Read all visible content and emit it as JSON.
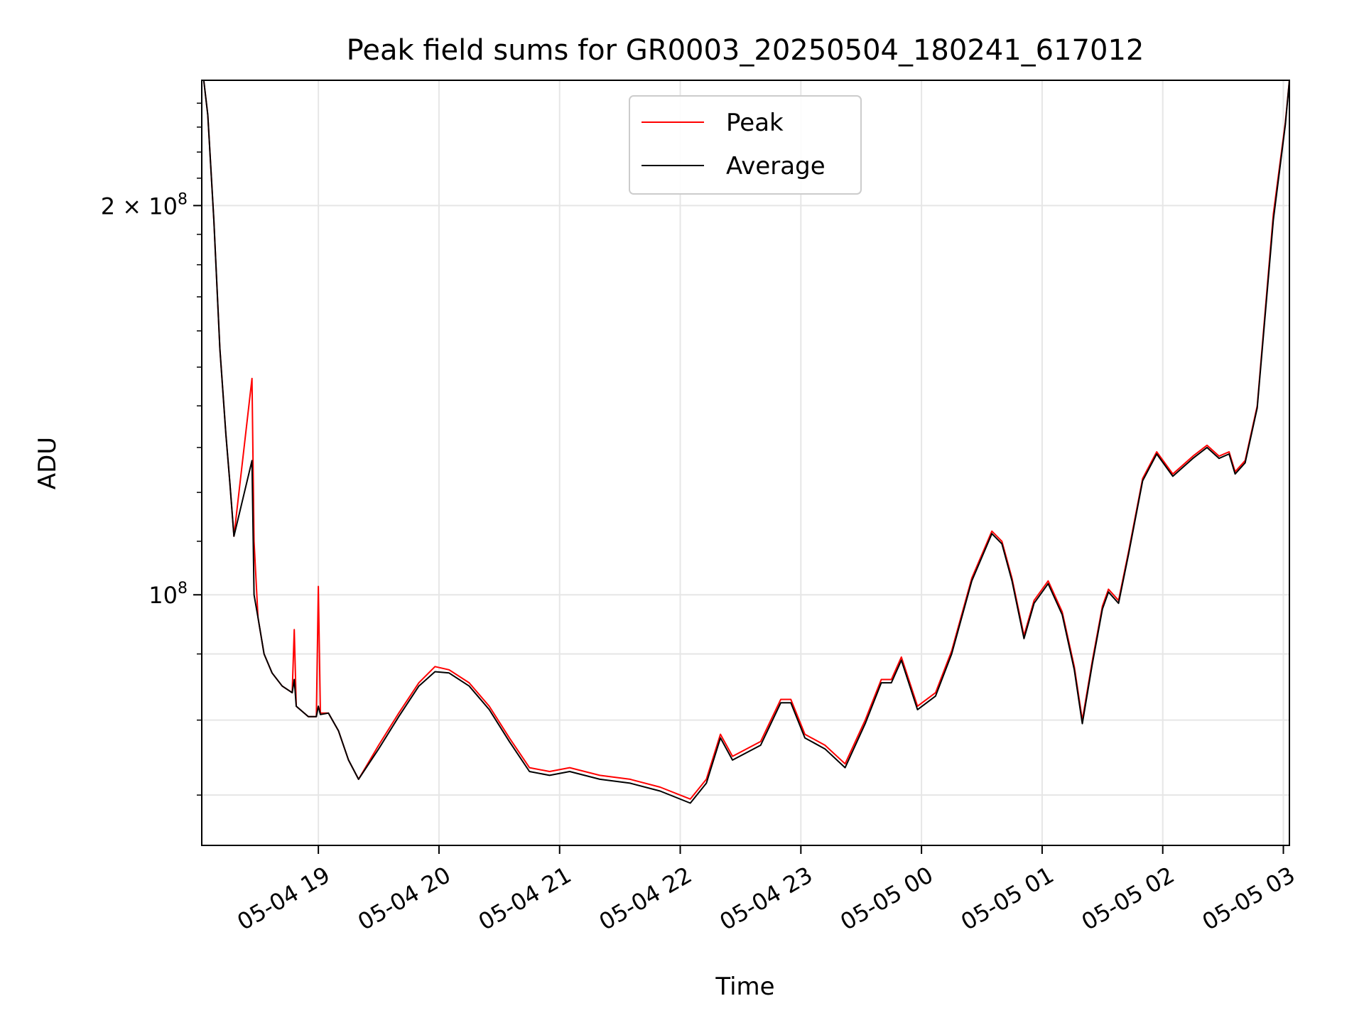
{
  "chart_data": {
    "type": "line",
    "title": "Peak field sums for GR0003_20250504_180241_617012",
    "xlabel": "Time",
    "ylabel": "ADU",
    "yscale": "log",
    "grid": true,
    "legend_position": "upper center",
    "xlim": [
      "05-04 18:02",
      "05-05 03:03"
    ],
    "ylim": [
      64000000,
      250000000
    ],
    "x_ticks": [
      "05-04 19",
      "05-04 20",
      "05-04 21",
      "05-04 22",
      "05-04 23",
      "05-05 00",
      "05-05 01",
      "05-05 02",
      "05-05 03"
    ],
    "y_ticks": [
      {
        "value": 100000000,
        "label": "10^8"
      },
      {
        "value": 200000000,
        "label": "2 × 10^8"
      }
    ],
    "series": [
      {
        "name": "Peak",
        "color": "#ff0000",
        "points": [
          [
            "05-04 18:03",
            250000000
          ],
          [
            "05-04 18:05",
            235000000
          ],
          [
            "05-04 18:08",
            195000000
          ],
          [
            "05-04 18:11",
            155000000
          ],
          [
            "05-04 18:14",
            133000000
          ],
          [
            "05-04 18:16",
            122000000
          ],
          [
            "05-04 18:18",
            111000000
          ],
          [
            "05-04 18:27",
            147000000
          ],
          [
            "05-04 18:28",
            110000000
          ],
          [
            "05-04 18:30",
            96000000
          ],
          [
            "05-04 18:33",
            90000000
          ],
          [
            "05-04 18:37",
            87000000
          ],
          [
            "05-04 18:42",
            85000000
          ],
          [
            "05-04 18:47",
            84000000
          ],
          [
            "05-04 18:48",
            94000000
          ],
          [
            "05-04 18:49",
            82000000
          ],
          [
            "05-04 18:55",
            80500000
          ],
          [
            "05-04 18:59",
            80500000
          ],
          [
            "05-04 19:00",
            101500000
          ],
          [
            "05-04 19:01",
            81000000
          ],
          [
            "05-04 19:05",
            81000000
          ],
          [
            "05-04 19:10",
            78500000
          ],
          [
            "05-04 19:15",
            74500000
          ],
          [
            "05-04 19:20",
            72000000
          ],
          [
            "05-04 19:30",
            76500000
          ],
          [
            "05-04 19:40",
            81000000
          ],
          [
            "05-04 19:50",
            85500000
          ],
          [
            "05-04 19:58",
            88000000
          ],
          [
            "05-04 20:05",
            87500000
          ],
          [
            "05-04 20:15",
            85500000
          ],
          [
            "05-04 20:25",
            82000000
          ],
          [
            "05-04 20:35",
            77500000
          ],
          [
            "05-04 20:45",
            73500000
          ],
          [
            "05-04 20:55",
            73000000
          ],
          [
            "05-04 21:05",
            73500000
          ],
          [
            "05-04 21:20",
            72500000
          ],
          [
            "05-04 21:35",
            72000000
          ],
          [
            "05-04 21:50",
            71000000
          ],
          [
            "05-04 22:05",
            69500000
          ],
          [
            "05-04 22:13",
            72000000
          ],
          [
            "05-04 22:20",
            78000000
          ],
          [
            "05-04 22:26",
            75000000
          ],
          [
            "05-04 22:40",
            77000000
          ],
          [
            "05-04 22:50",
            83000000
          ],
          [
            "05-04 22:55",
            83000000
          ],
          [
            "05-04 23:02",
            78000000
          ],
          [
            "05-04 23:12",
            76500000
          ],
          [
            "05-04 23:22",
            74000000
          ],
          [
            "05-04 23:32",
            80000000
          ],
          [
            "05-04 23:40",
            86000000
          ],
          [
            "05-04 23:45",
            86000000
          ],
          [
            "05-04 23:50",
            89500000
          ],
          [
            "05-04 23:58",
            82000000
          ],
          [
            "05-05 00:07",
            84000000
          ],
          [
            "05-05 00:15",
            90500000
          ],
          [
            "05-05 00:25",
            103000000
          ],
          [
            "05-05 00:35",
            112000000
          ],
          [
            "05-05 00:40",
            110000000
          ],
          [
            "05-05 00:45",
            103000000
          ],
          [
            "05-05 00:51",
            93000000
          ],
          [
            "05-05 00:56",
            99000000
          ],
          [
            "05-05 01:03",
            102500000
          ],
          [
            "05-05 01:10",
            97000000
          ],
          [
            "05-05 01:16",
            88000000
          ],
          [
            "05-05 01:20",
            80000000
          ],
          [
            "05-05 01:25",
            89000000
          ],
          [
            "05-05 01:30",
            98000000
          ],
          [
            "05-05 01:33",
            101000000
          ],
          [
            "05-05 01:38",
            99000000
          ],
          [
            "05-05 01:43",
            108000000
          ],
          [
            "05-05 01:50",
            123000000
          ],
          [
            "05-05 01:57",
            129000000
          ],
          [
            "05-05 02:05",
            124000000
          ],
          [
            "05-05 02:15",
            128000000
          ],
          [
            "05-05 02:22",
            130500000
          ],
          [
            "05-05 02:28",
            128000000
          ],
          [
            "05-05 02:33",
            129000000
          ],
          [
            "05-05 02:36",
            124500000
          ],
          [
            "05-05 02:41",
            127000000
          ],
          [
            "05-05 02:47",
            140000000
          ],
          [
            "05-05 02:55",
            197000000
          ],
          [
            "05-05 03:01",
            232000000
          ],
          [
            "05-05 03:03",
            250000000
          ]
        ]
      },
      {
        "name": "Average",
        "color": "#000000",
        "points": [
          [
            "05-04 18:03",
            250000000
          ],
          [
            "05-04 18:05",
            235000000
          ],
          [
            "05-04 18:08",
            195000000
          ],
          [
            "05-04 18:11",
            155000000
          ],
          [
            "05-04 18:14",
            133000000
          ],
          [
            "05-04 18:16",
            122000000
          ],
          [
            "05-04 18:18",
            111000000
          ],
          [
            "05-04 18:27",
            127000000
          ],
          [
            "05-04 18:28",
            100000000
          ],
          [
            "05-04 18:30",
            96000000
          ],
          [
            "05-04 18:33",
            90000000
          ],
          [
            "05-04 18:37",
            87000000
          ],
          [
            "05-04 18:42",
            85000000
          ],
          [
            "05-04 18:47",
            84000000
          ],
          [
            "05-04 18:48",
            86000000
          ],
          [
            "05-04 18:49",
            82000000
          ],
          [
            "05-04 18:55",
            80500000
          ],
          [
            "05-04 18:59",
            80500000
          ],
          [
            "05-04 19:00",
            82000000
          ],
          [
            "05-04 19:01",
            80800000
          ],
          [
            "05-04 19:05",
            81000000
          ],
          [
            "05-04 19:10",
            78500000
          ],
          [
            "05-04 19:15",
            74500000
          ],
          [
            "05-04 19:20",
            72000000
          ],
          [
            "05-04 19:30",
            76000000
          ],
          [
            "05-04 19:40",
            80500000
          ],
          [
            "05-04 19:50",
            85000000
          ],
          [
            "05-04 19:58",
            87200000
          ],
          [
            "05-04 20:05",
            87000000
          ],
          [
            "05-04 20:15",
            85000000
          ],
          [
            "05-04 20:25",
            81500000
          ],
          [
            "05-04 20:35",
            77000000
          ],
          [
            "05-04 20:45",
            73000000
          ],
          [
            "05-04 20:55",
            72500000
          ],
          [
            "05-04 21:05",
            73000000
          ],
          [
            "05-04 21:20",
            72000000
          ],
          [
            "05-04 21:35",
            71500000
          ],
          [
            "05-04 21:50",
            70500000
          ],
          [
            "05-04 22:05",
            69000000
          ],
          [
            "05-04 22:13",
            71500000
          ],
          [
            "05-04 22:20",
            77500000
          ],
          [
            "05-04 22:26",
            74500000
          ],
          [
            "05-04 22:40",
            76500000
          ],
          [
            "05-04 22:50",
            82500000
          ],
          [
            "05-04 22:55",
            82500000
          ],
          [
            "05-04 23:02",
            77500000
          ],
          [
            "05-04 23:12",
            76000000
          ],
          [
            "05-04 23:22",
            73500000
          ],
          [
            "05-04 23:32",
            79500000
          ],
          [
            "05-04 23:40",
            85500000
          ],
          [
            "05-04 23:45",
            85500000
          ],
          [
            "05-04 23:50",
            89000000
          ],
          [
            "05-04 23:58",
            81500000
          ],
          [
            "05-05 00:07",
            83500000
          ],
          [
            "05-05 00:15",
            90000000
          ],
          [
            "05-05 00:25",
            102500000
          ],
          [
            "05-05 00:35",
            111500000
          ],
          [
            "05-05 00:40",
            109500000
          ],
          [
            "05-05 00:45",
            102500000
          ],
          [
            "05-05 00:51",
            92500000
          ],
          [
            "05-05 00:56",
            98500000
          ],
          [
            "05-05 01:03",
            102000000
          ],
          [
            "05-05 01:10",
            96500000
          ],
          [
            "05-05 01:16",
            87500000
          ],
          [
            "05-05 01:20",
            79500000
          ],
          [
            "05-05 01:25",
            88500000
          ],
          [
            "05-05 01:30",
            97500000
          ],
          [
            "05-05 01:33",
            100500000
          ],
          [
            "05-05 01:38",
            98500000
          ],
          [
            "05-05 01:43",
            107500000
          ],
          [
            "05-05 01:50",
            122500000
          ],
          [
            "05-05 01:57",
            128500000
          ],
          [
            "05-05 02:05",
            123500000
          ],
          [
            "05-05 02:15",
            127500000
          ],
          [
            "05-05 02:22",
            130000000
          ],
          [
            "05-05 02:28",
            127500000
          ],
          [
            "05-05 02:33",
            128500000
          ],
          [
            "05-05 02:36",
            124000000
          ],
          [
            "05-05 02:41",
            126500000
          ],
          [
            "05-05 02:47",
            139500000
          ],
          [
            "05-05 02:55",
            195000000
          ],
          [
            "05-05 03:01",
            231000000
          ],
          [
            "05-05 03:03",
            250000000
          ]
        ]
      }
    ]
  }
}
